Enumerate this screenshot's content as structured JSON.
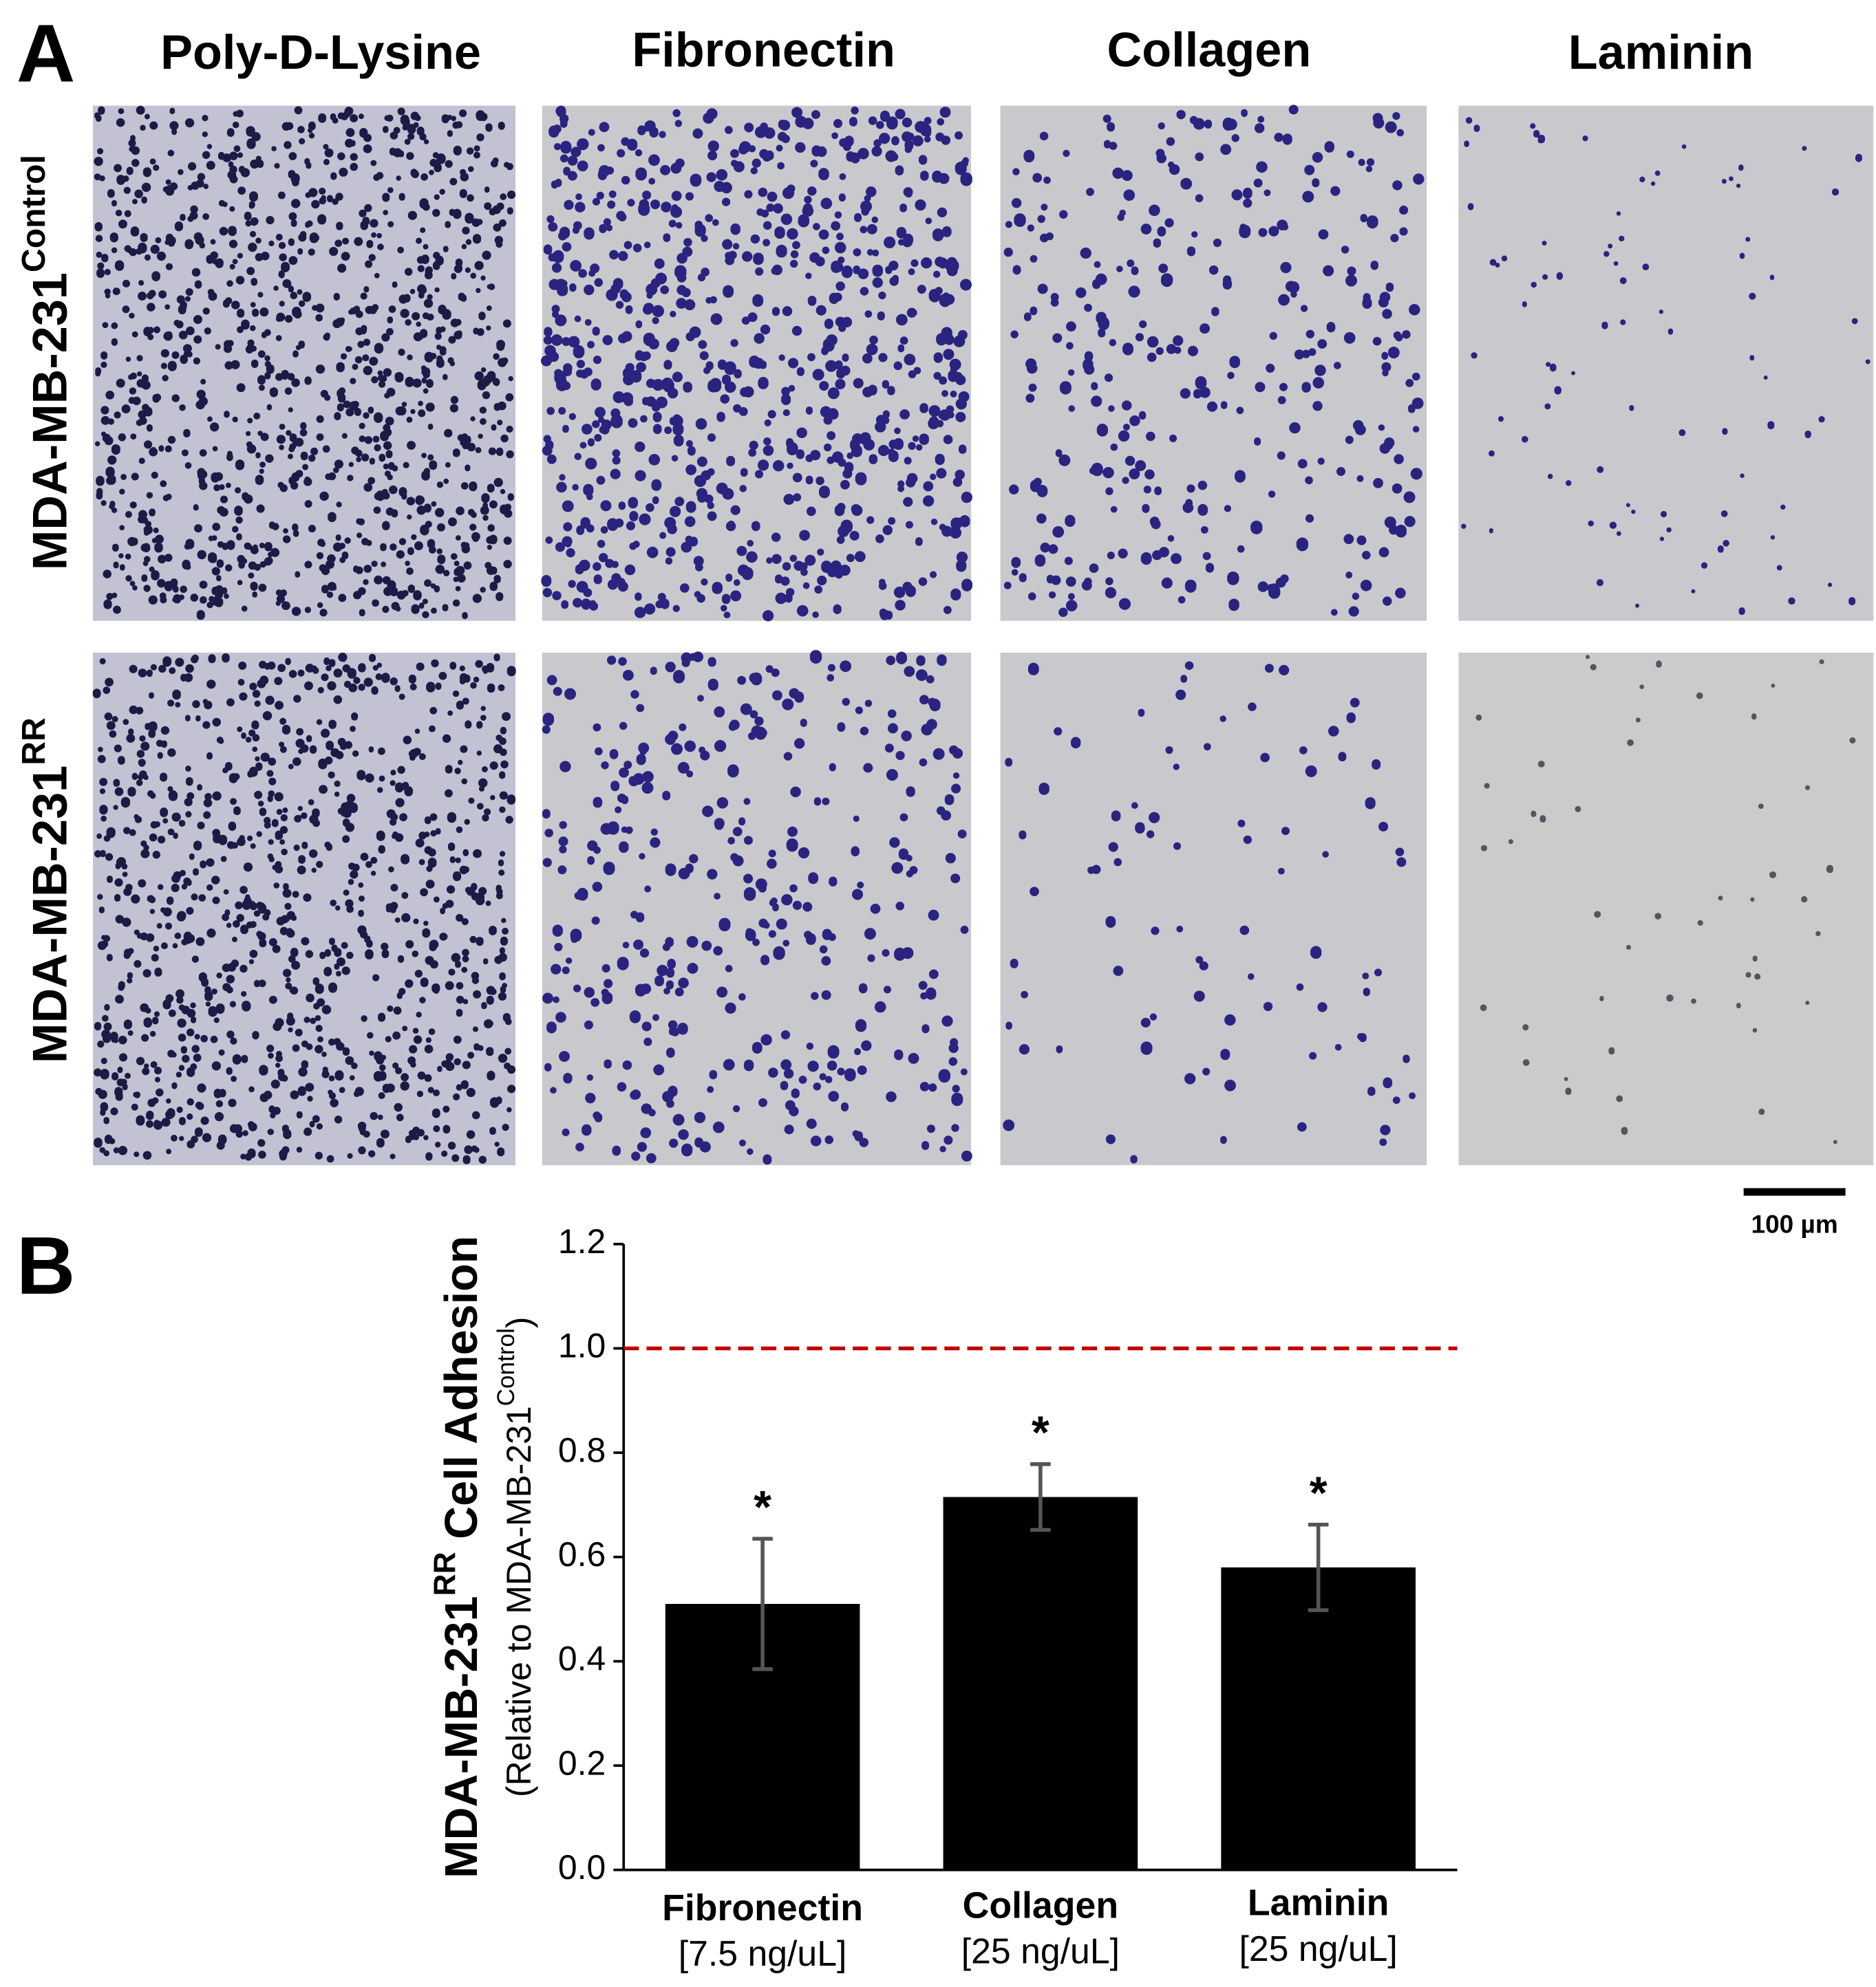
{
  "panel_a": {
    "letter": "A",
    "columns": [
      "Poly-D-Lysine",
      "Fibronectin",
      "Collagen",
      "Laminin"
    ],
    "rows": [
      {
        "label": "MDA-MB-231",
        "sup": "Control"
      },
      {
        "label": "MDA-MB-231",
        "sup": "RR"
      }
    ],
    "scale_bar": "100 µm"
  },
  "panel_b": {
    "letter": "B"
  },
  "chart_data": {
    "type": "bar",
    "ylabel": [
      "MDA-MB-231",
      "RR",
      " Cell Adhesion"
    ],
    "ylabel_sub": [
      "(Relative to MDA-MB-231",
      "Control",
      ")"
    ],
    "categories": [
      "Fibronectin",
      "Collagen",
      "Laminin"
    ],
    "category_notes": [
      "[7.5 ng/uL]",
      "[25 ng/uL]",
      "[25 ng/uL]"
    ],
    "values": [
      0.51,
      0.715,
      0.58
    ],
    "errors": [
      0.125,
      0.063,
      0.082
    ],
    "annotations": [
      "*",
      "*",
      "*"
    ],
    "color": "#000000",
    "error_color": "#555555",
    "reference_line": {
      "value": 1.0,
      "color": "#c00000",
      "style": "dashed"
    },
    "ylim": [
      0,
      1.2
    ],
    "yticks": [
      {
        "value": 0,
        "label": "0.0"
      },
      0.2,
      0.4,
      0.6,
      0.8,
      {
        "value": 1.0,
        "label": "1.0"
      },
      1.2
    ],
    "grid": false
  }
}
